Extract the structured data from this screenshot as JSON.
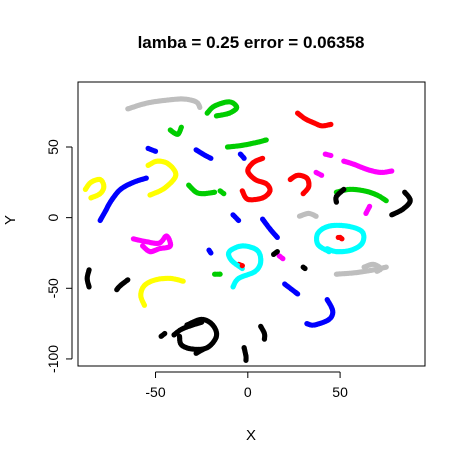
{
  "chart_data": {
    "type": "scatter",
    "title": "lamba = 0.25 error = 0.06358",
    "xlabel": "X",
    "ylabel": "Y",
    "xlim": [
      -92,
      96
    ],
    "ylim": [
      -105,
      96
    ],
    "xticks": [
      -50,
      0,
      50
    ],
    "yticks": [
      -100,
      -50,
      0,
      50
    ],
    "grid": false,
    "legend": "none",
    "colors": {
      "gray": "#bebebe",
      "green": "#00cd00",
      "blue": "#0000ff",
      "red": "#ff0000",
      "magenta": "#ff00ff",
      "black": "#000000",
      "yellow": "#ffff00",
      "cyan": "#00ffff"
    },
    "series": [
      {
        "color_key": "gray",
        "curves": [
          [
            [
              -65,
              77
            ],
            [
              -55,
              81
            ],
            [
              -45,
              83
            ],
            [
              -35,
              84
            ],
            [
              -28,
              82
            ],
            [
              -26,
              78
            ]
          ],
          [
            [
              28,
              1
            ],
            [
              33,
              3
            ],
            [
              37,
              1
            ]
          ],
          [
            [
              48,
              -40
            ],
            [
              58,
              -39
            ],
            [
              68,
              -37
            ],
            [
              75,
              -35
            ]
          ],
          [
            [
              63,
              -35
            ],
            [
              68,
              -33
            ],
            [
              72,
              -36
            ],
            [
              70,
              -38
            ]
          ]
        ]
      },
      {
        "color_key": "green",
        "curves": [
          [
            [
              -22,
              74
            ],
            [
              -18,
              79
            ],
            [
              -10,
              82
            ],
            [
              -6,
              78
            ],
            [
              -10,
              74
            ],
            [
              -17,
              72
            ]
          ],
          [
            [
              -42,
              62
            ],
            [
              -38,
              59
            ],
            [
              -36,
              64
            ]
          ],
          [
            [
              -11,
              50
            ],
            [
              -4,
              51
            ],
            [
              4,
              53
            ],
            [
              10,
              55
            ]
          ],
          [
            [
              -32,
              23
            ],
            [
              -28,
              18
            ],
            [
              -24,
              17
            ],
            [
              -18,
              18
            ]
          ],
          [
            [
              -15,
              19
            ],
            [
              -13,
              17
            ]
          ],
          [
            [
              48,
              18
            ],
            [
              55,
              20
            ],
            [
              63,
              19
            ],
            [
              70,
              16
            ],
            [
              75,
              12
            ]
          ],
          [
            [
              -18,
              -40
            ],
            [
              -15,
              -40
            ]
          ]
        ]
      },
      {
        "color_key": "blue",
        "curves": [
          [
            [
              -54,
              49
            ],
            [
              -50,
              47
            ]
          ],
          [
            [
              -28,
              48
            ],
            [
              -23,
              44
            ],
            [
              -20,
              42
            ]
          ],
          [
            [
              -4,
              45
            ],
            [
              -2,
              42
            ]
          ],
          [
            [
              -55,
              28
            ],
            [
              -62,
              25
            ],
            [
              -69,
              20
            ],
            [
              -74,
              12
            ],
            [
              -77,
              5
            ],
            [
              -80,
              -2
            ]
          ],
          [
            [
              -8,
              2
            ],
            [
              -5,
              -2
            ]
          ],
          [
            [
              8,
              -1
            ],
            [
              12,
              -8
            ],
            [
              16,
              -14
            ]
          ],
          [
            [
              -21,
              -23
            ],
            [
              -20,
              -25
            ]
          ],
          [
            [
              20,
              -47
            ],
            [
              24,
              -51
            ],
            [
              27,
              -54
            ]
          ],
          [
            [
              43,
              -58
            ],
            [
              46,
              -66
            ],
            [
              44,
              -72
            ],
            [
              36,
              -76
            ],
            [
              32,
              -75
            ]
          ]
        ]
      },
      {
        "color_key": "red",
        "curves": [
          [
            [
              27,
              74
            ],
            [
              31,
              70
            ],
            [
              36,
              67
            ],
            [
              40,
              65
            ],
            [
              45,
              66
            ]
          ],
          [
            [
              8,
              42
            ],
            [
              3,
              39
            ],
            [
              0,
              33
            ],
            [
              4,
              27
            ],
            [
              10,
              24
            ],
            [
              12,
              19
            ],
            [
              8,
              14
            ],
            [
              0,
              13
            ],
            [
              -3,
              19
            ]
          ],
          [
            [
              23,
              27
            ],
            [
              27,
              30
            ],
            [
              32,
              28
            ],
            [
              33,
              22
            ],
            [
              30,
              17
            ]
          ],
          [
            [
              -5,
              -33
            ],
            [
              -3,
              -34
            ]
          ],
          [
            [
              50,
              -14
            ],
            [
              51,
              -15
            ]
          ]
        ]
      },
      {
        "color_key": "magenta",
        "curves": [
          [
            [
              42,
              45
            ],
            [
              45,
              44
            ]
          ],
          [
            [
              52,
              40
            ],
            [
              57,
              38
            ],
            [
              65,
              34
            ],
            [
              72,
              32
            ],
            [
              78,
              33
            ]
          ],
          [
            [
              37,
              32
            ],
            [
              40,
              30
            ]
          ],
          [
            [
              66,
              8
            ],
            [
              64,
              3
            ]
          ],
          [
            [
              -62,
              -15
            ],
            [
              -55,
              -17
            ],
            [
              -48,
              -18
            ],
            [
              -44,
              -13
            ],
            [
              -42,
              -20
            ],
            [
              -48,
              -22
            ],
            [
              -53,
              -24
            ],
            [
              -57,
              -20
            ]
          ],
          [
            [
              17,
              -27
            ],
            [
              19,
              -29
            ]
          ]
        ]
      },
      {
        "color_key": "black",
        "curves": [
          [
            [
              52,
              20
            ],
            [
              48,
              15
            ],
            [
              48,
              11
            ]
          ],
          [
            [
              85,
              18
            ],
            [
              88,
              12
            ],
            [
              84,
              6
            ],
            [
              78,
              2
            ]
          ],
          [
            [
              -86,
              -37
            ],
            [
              -87,
              -43
            ],
            [
              -86,
              -49
            ]
          ],
          [
            [
              -65,
              -44
            ],
            [
              -69,
              -48
            ],
            [
              -71,
              -51
            ]
          ],
          [
            [
              -40,
              -83
            ],
            [
              -36,
              -79
            ],
            [
              -30,
              -76
            ],
            [
              -25,
              -74
            ]
          ],
          [
            [
              -33,
              -76
            ],
            [
              -25,
              -72
            ],
            [
              -19,
              -76
            ],
            [
              -17,
              -84
            ],
            [
              -22,
              -92
            ],
            [
              -30,
              -93
            ],
            [
              -36,
              -90
            ],
            [
              -37,
              -84
            ]
          ],
          [
            [
              -28,
              -96
            ],
            [
              -24,
              -93
            ]
          ],
          [
            [
              7,
              -77
            ],
            [
              9,
              -82
            ],
            [
              9,
              -86
            ]
          ],
          [
            [
              -2,
              -92
            ],
            [
              -1,
              -98
            ],
            [
              -1,
              -101
            ]
          ],
          [
            [
              -47,
              -84
            ],
            [
              -45,
              -82
            ]
          ],
          [
            [
              30,
              -35
            ],
            [
              31,
              -36
            ]
          ],
          [
            [
              14,
              -26
            ],
            [
              16,
              -24
            ]
          ]
        ]
      },
      {
        "color_key": "yellow",
        "curves": [
          [
            [
              -88,
              20
            ],
            [
              -85,
              25
            ],
            [
              -80,
              27
            ],
            [
              -78,
              22
            ],
            [
              -80,
              17
            ],
            [
              -85,
              14
            ]
          ],
          [
            [
              -54,
              37
            ],
            [
              -49,
              40
            ],
            [
              -43,
              38
            ],
            [
              -39,
              30
            ],
            [
              -45,
              21
            ],
            [
              -53,
              16
            ]
          ],
          [
            [
              -35,
              -45
            ],
            [
              -42,
              -43
            ],
            [
              -50,
              -44
            ],
            [
              -56,
              -48
            ],
            [
              -58,
              -55
            ],
            [
              -56,
              -62
            ]
          ]
        ]
      },
      {
        "color_key": "cyan",
        "curves": [
          [
            [
              -3,
              -36
            ],
            [
              -9,
              -30
            ],
            [
              -10,
              -24
            ],
            [
              -3,
              -20
            ],
            [
              5,
              -23
            ],
            [
              7,
              -31
            ],
            [
              4,
              -38
            ],
            [
              -5,
              -43
            ],
            [
              -8,
              -49
            ]
          ],
          [
            [
              44,
              -24
            ],
            [
              38,
              -19
            ],
            [
              38,
              -11
            ],
            [
              44,
              -6
            ],
            [
              54,
              -6
            ],
            [
              62,
              -10
            ],
            [
              62,
              -18
            ],
            [
              56,
              -23
            ],
            [
              48,
              -24
            ],
            [
              43,
              -22
            ]
          ]
        ]
      }
    ],
    "single_points": [
      {
        "color_key": "red",
        "point": [
          49,
          -14
        ]
      },
      {
        "color_key": "blue",
        "point": [
          26,
          -53
        ]
      },
      {
        "color_key": "red",
        "point": [
          -3,
          -34
        ]
      }
    ]
  }
}
